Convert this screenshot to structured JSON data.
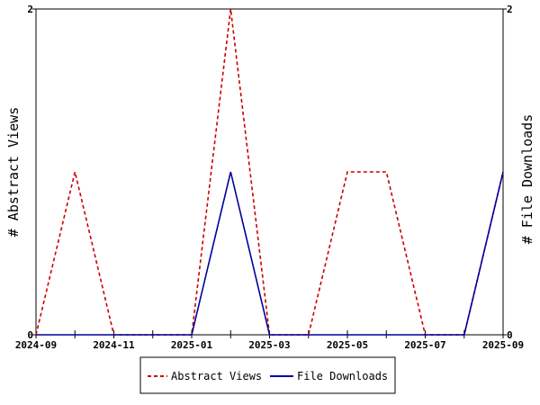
{
  "chart_data": {
    "type": "line",
    "x": [
      "2024-09",
      "2024-10",
      "2024-11",
      "2024-12",
      "2025-01",
      "2025-02",
      "2025-03",
      "2025-04",
      "2025-05",
      "2025-06",
      "2025-07",
      "2025-08",
      "2025-09"
    ],
    "x_ticks": [
      "2024-09",
      "2024-11",
      "2025-01",
      "2025-03",
      "2025-05",
      "2025-07",
      "2025-09"
    ],
    "series": [
      {
        "name": "Abstract Views",
        "axis": "left",
        "color": "#cc0000",
        "dash": "dashed",
        "values": [
          0,
          1,
          0,
          0,
          0,
          2,
          0,
          0,
          1,
          1,
          0,
          0,
          1
        ]
      },
      {
        "name": "File Downloads",
        "axis": "right",
        "color": "#000099",
        "dash": "solid",
        "values": [
          0,
          0,
          0,
          0,
          0,
          1,
          0,
          0,
          0,
          0,
          0,
          0,
          1
        ]
      }
    ],
    "ylabel_left": "# Abstract Views",
    "ylabel_right": "# File Downloads",
    "ylim_left": [
      0,
      2
    ],
    "ylim_right": [
      0,
      2
    ],
    "y_ticks_left": [
      "0",
      "2"
    ],
    "y_ticks_right": [
      "0",
      "2"
    ],
    "legend_position": "bottom",
    "grid": false
  }
}
